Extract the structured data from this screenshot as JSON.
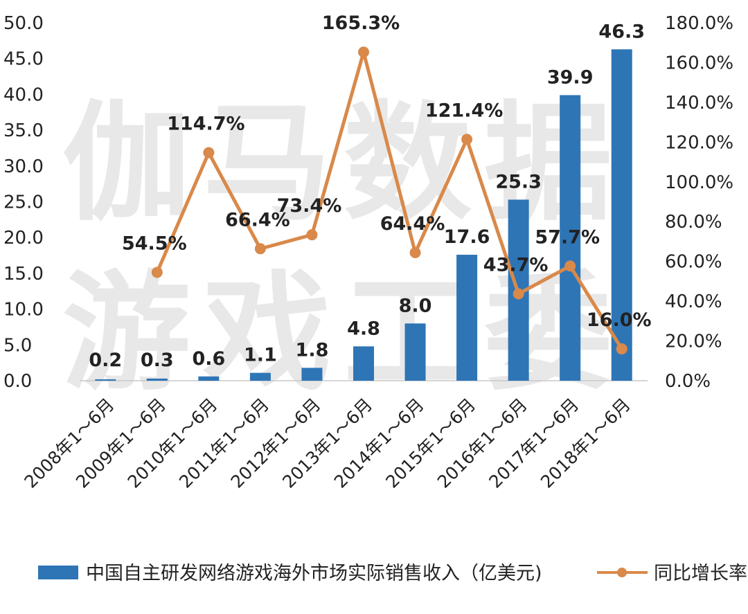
{
  "chart_data": {
    "type": "bar",
    "categories": [
      "2008年1～6月",
      "2009年1～6月",
      "2010年1～6月",
      "2011年1～6月",
      "2012年1～6月",
      "2013年1～6月",
      "2014年1～6月",
      "2015年1～6月",
      "2016年1～6月",
      "2017年1～6月",
      "2018年1～6月"
    ],
    "series": [
      {
        "name": "中国自主研发网络游戏海外市场实际销售收入（亿美元)",
        "type": "bar",
        "axis": "left",
        "values": [
          0.2,
          0.3,
          0.6,
          1.1,
          1.8,
          4.8,
          8.0,
          17.6,
          25.3,
          39.9,
          46.3
        ],
        "labels": [
          "0.2",
          "0.3",
          "0.6",
          "1.1",
          "1.8",
          "4.8",
          "8.0",
          "17.6",
          "25.3",
          "39.9",
          "46.3"
        ],
        "color": "#2e75b6"
      },
      {
        "name": "同比增长率",
        "type": "line",
        "axis": "right",
        "values": [
          null,
          54.5,
          114.7,
          66.4,
          73.4,
          165.3,
          64.4,
          121.4,
          43.7,
          57.7,
          16.0
        ],
        "labels": [
          "",
          "54.5%",
          "114.7%",
          "66.4%",
          "73.4%",
          "165.3%",
          "64.4%",
          "121.4%",
          "43.7%",
          "57.7%",
          "16.0%"
        ],
        "color": "#d9894a"
      }
    ],
    "y_left": {
      "ylim": [
        0,
        50
      ],
      "ticks": [
        "0.0",
        "5.0",
        "10.0",
        "15.0",
        "20.0",
        "25.0",
        "30.0",
        "35.0",
        "40.0",
        "45.0",
        "50.0"
      ]
    },
    "y_right": {
      "ylim": [
        0,
        180
      ],
      "ticks": [
        "0.0%",
        "20.0%",
        "40.0%",
        "60.0%",
        "80.0%",
        "100.0%",
        "120.0%",
        "140.0%",
        "160.0%",
        "180.0%"
      ]
    },
    "grid": false,
    "legend_position": "bottom",
    "watermark": [
      "伽马数据",
      "游戏工委"
    ]
  }
}
